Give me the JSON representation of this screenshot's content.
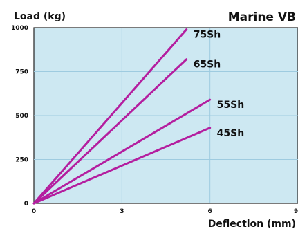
{
  "chart_data": {
    "type": "line",
    "title": "Marine VB",
    "xlabel": "Deflection (mm)",
    "ylabel": "Load (kg)",
    "xlim": [
      0,
      9
    ],
    "ylim": [
      0,
      1000
    ],
    "x_ticks": [
      "0",
      "3",
      "6",
      "9"
    ],
    "y_ticks": [
      "0",
      "250",
      "500",
      "750",
      "1000"
    ],
    "grid": true,
    "colors": {
      "plot_background": "#cde8f2",
      "grid": "#9ecbe0",
      "series": "#b41e9f"
    },
    "series": [
      {
        "name": "75Sh",
        "x": [
          0,
          5.2
        ],
        "y": [
          0,
          990
        ]
      },
      {
        "name": "65Sh",
        "x": [
          0,
          5.2
        ],
        "y": [
          0,
          820
        ]
      },
      {
        "name": "55Sh",
        "x": [
          0,
          6.0
        ],
        "y": [
          0,
          590
        ]
      },
      {
        "name": "45Sh",
        "x": [
          0,
          6.0
        ],
        "y": [
          0,
          430
        ]
      }
    ]
  }
}
